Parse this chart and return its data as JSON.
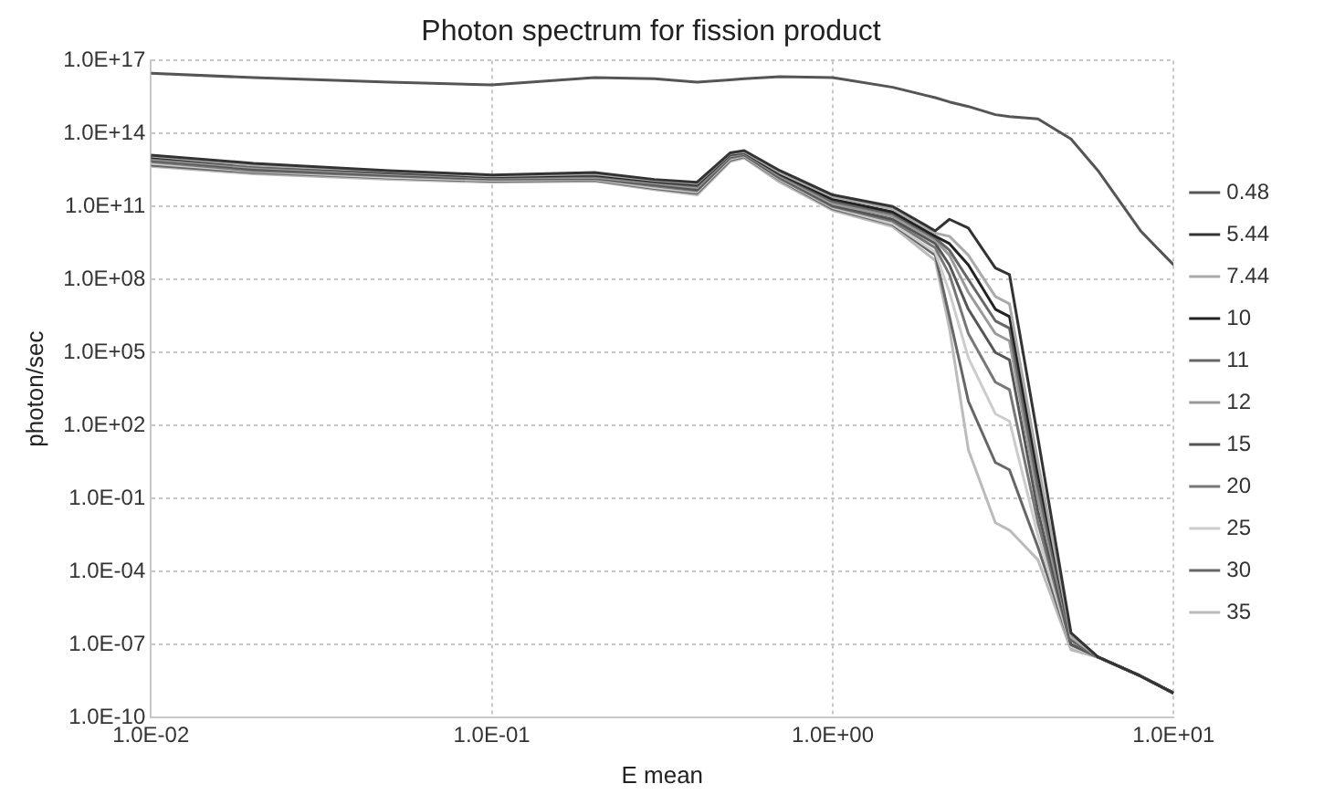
{
  "chart_data": {
    "type": "line",
    "title": "Photon spectrum for fission product",
    "xlabel": "E mean",
    "ylabel": "photon/sec",
    "log": "xy",
    "grid": true,
    "legend": "right",
    "marker": "none",
    "line_style": "solid",
    "xlim": [
      0.01,
      10
    ],
    "ylim": [
      1e-10,
      1e+17
    ],
    "xticks": [
      {
        "value": 0.01,
        "label": "1.0E-02"
      },
      {
        "value": 0.1,
        "label": "1.0E-01"
      },
      {
        "value": 1,
        "label": "1.0E+00"
      },
      {
        "value": 10,
        "label": "1.0E+01"
      }
    ],
    "yticks": [
      {
        "value": 1e-10,
        "label": "1.0E-10"
      },
      {
        "value": 1e-07,
        "label": "1.0E-07"
      },
      {
        "value": 0.0001,
        "label": "1.0E-04"
      },
      {
        "value": 0.1,
        "label": "1.0E-01"
      },
      {
        "value": 100,
        "label": "1.0E+02"
      },
      {
        "value": 100000.0,
        "label": "1.0E+05"
      },
      {
        "value": 100000000.0,
        "label": "1.0E+08"
      },
      {
        "value": 100000000000.0,
        "label": "1.0E+11"
      },
      {
        "value": 100000000000000.0,
        "label": "1.0E+14"
      },
      {
        "value": 1e+17,
        "label": "1.0E+17"
      }
    ],
    "x": [
      0.01,
      0.02,
      0.05,
      0.1,
      0.2,
      0.3,
      0.4,
      0.5,
      0.55,
      0.7,
      1,
      1.5,
      2,
      2.2,
      2.5,
      3,
      3.3,
      4,
      5,
      6,
      8,
      10
    ],
    "series": [
      {
        "name": "0.48",
        "color": "#555555",
        "values": [
          3e+16,
          2e+16,
          1.3e+16,
          1e+16,
          2e+16,
          1.8e+16,
          1.3e+16,
          1.6e+16,
          1.8e+16,
          2.2e+16,
          2e+16,
          8000000000000000.0,
          3000000000000000.0,
          2000000000000000.0,
          1300000000000000.0,
          600000000000000.0,
          500000000000000.0,
          400000000000000.0,
          60000000000000.0,
          3000000000000.0,
          10000000000.0,
          400000000.0
        ]
      },
      {
        "name": "5.44",
        "color": "#333333",
        "values": [
          13000000000000.0,
          6000000000000.0,
          3000000000000.0,
          2000000000000.0,
          2500000000000.0,
          1300000000000.0,
          1000000000000.0,
          16000000000000.0,
          20000000000000.0,
          3000000000000.0,
          300000000000.0,
          100000000000.0,
          10000000000.0,
          30000000000.0,
          13000000000.0,
          300000000.0,
          160000000.0,
          30.0,
          3e-07,
          3e-08,
          5e-09,
          1e-09
        ]
      },
      {
        "name": "7.44",
        "color": "#aaaaaa",
        "values": [
          12000000000000.0,
          5000000000000.0,
          2800000000000.0,
          1800000000000.0,
          2200000000000.0,
          1200000000000.0,
          900000000000.0,
          15000000000000.0,
          18000000000000.0,
          2500000000000.0,
          250000000000.0,
          80000000000.0,
          8000000000.0,
          6000000000.0,
          1000000000.0,
          20000000.0,
          10000000.0,
          3.0,
          2e-07,
          3e-08,
          5e-09,
          1e-09
        ]
      },
      {
        "name": "10",
        "color": "#222222",
        "values": [
          11000000000000.0,
          5000000000000.0,
          2600000000000.0,
          1700000000000.0,
          2000000000000.0,
          1100000000000.0,
          800000000000.0,
          14000000000000.0,
          17000000000000.0,
          2200000000000.0,
          200000000000.0,
          60000000000.0,
          6000000000.0,
          3000000000.0,
          400000000.0,
          6000000.0,
          3000000.0,
          1.0,
          2e-07,
          3e-08,
          5e-09,
          1e-09
        ]
      },
      {
        "name": "11",
        "color": "#666666",
        "values": [
          10000000000000.0,
          4500000000000.0,
          2400000000000.0,
          1600000000000.0,
          1800000000000.0,
          1000000000000.0,
          700000000000.0,
          13000000000000.0,
          16000000000000.0,
          2000000000000.0,
          160000000000.0,
          50000000000.0,
          5000000000.0,
          1600000000.0,
          100000000.0,
          2000000.0,
          1000000.0,
          0.3,
          1.5e-07,
          3e-08,
          5e-09,
          1e-09
        ]
      },
      {
        "name": "12",
        "color": "#999999",
        "values": [
          9000000000000.0,
          4000000000000.0,
          2200000000000.0,
          1500000000000.0,
          1600000000000.0,
          900000000000.0,
          600000000000.0,
          12000000000000.0,
          15000000000000.0,
          1800000000000.0,
          130000000000.0,
          40000000000.0,
          4000000000.0,
          1000000000.0,
          30000000.0,
          600000.0,
          300000.0,
          0.1,
          1.5e-07,
          3e-08,
          5e-09,
          1e-09
        ]
      },
      {
        "name": "15",
        "color": "#555555",
        "values": [
          8000000000000.0,
          3500000000000.0,
          2000000000000.0,
          1400000000000.0,
          1500000000000.0,
          800000000000.0,
          500000000000.0,
          11000000000000.0,
          14000000000000.0,
          1600000000000.0,
          110000000000.0,
          30000000000.0,
          3000000000.0,
          400000000.0,
          6000000.0,
          100000.0,
          50000.0,
          0.03,
          1e-07,
          3e-08,
          5e-09,
          1e-09
        ]
      },
      {
        "name": "20",
        "color": "#777777",
        "values": [
          7000000000000.0,
          3000000000000.0,
          1800000000000.0,
          1300000000000.0,
          1400000000000.0,
          700000000000.0,
          450000000000.0,
          10000000000000.0,
          13000000000000.0,
          1400000000000.0,
          100000000000.0,
          25000000000.0,
          2000000000.0,
          160000000.0,
          600000.0,
          6000.0,
          3000.0,
          0.01,
          1e-07,
          3e-08,
          5e-09,
          1e-09
        ]
      },
      {
        "name": "25",
        "color": "#cccccc",
        "values": [
          6000000000000.0,
          2800000000000.0,
          1600000000000.0,
          1200000000000.0,
          1300000000000.0,
          600000000000.0,
          400000000000.0,
          9000000000000.0,
          12000000000000.0,
          1300000000000.0,
          90000000000.0,
          20000000000.0,
          1300000000.0,
          30000000.0,
          60000.0,
          300.0,
          150.0,
          0.003,
          8e-08,
          3e-08,
          5e-09,
          1e-09
        ]
      },
      {
        "name": "30",
        "color": "#666666",
        "values": [
          5000000000000.0,
          2500000000000.0,
          1500000000000.0,
          1100000000000.0,
          1200000000000.0,
          550000000000.0,
          350000000000.0,
          8000000000000.0,
          11000000000000.0,
          1200000000000.0,
          80000000000.0,
          18000000000.0,
          1000000000.0,
          3000000.0,
          1000.0,
          3.0,
          1.5,
          0.001,
          8e-08,
          3e-08,
          5e-09,
          1e-09
        ]
      },
      {
        "name": "35",
        "color": "#bbbbbb",
        "values": [
          4500000000000.0,
          2200000000000.0,
          1300000000000.0,
          1000000000000.0,
          1100000000000.0,
          500000000000.0,
          300000000000.0,
          7000000000000.0,
          10000000000000.0,
          1000000000000.0,
          70000000000.0,
          15000000000.0,
          600000000.0,
          1000000.0,
          10.0,
          0.01,
          0.005,
          0.0003,
          6e-08,
          3e-08,
          5e-09,
          1e-09
        ]
      }
    ]
  }
}
